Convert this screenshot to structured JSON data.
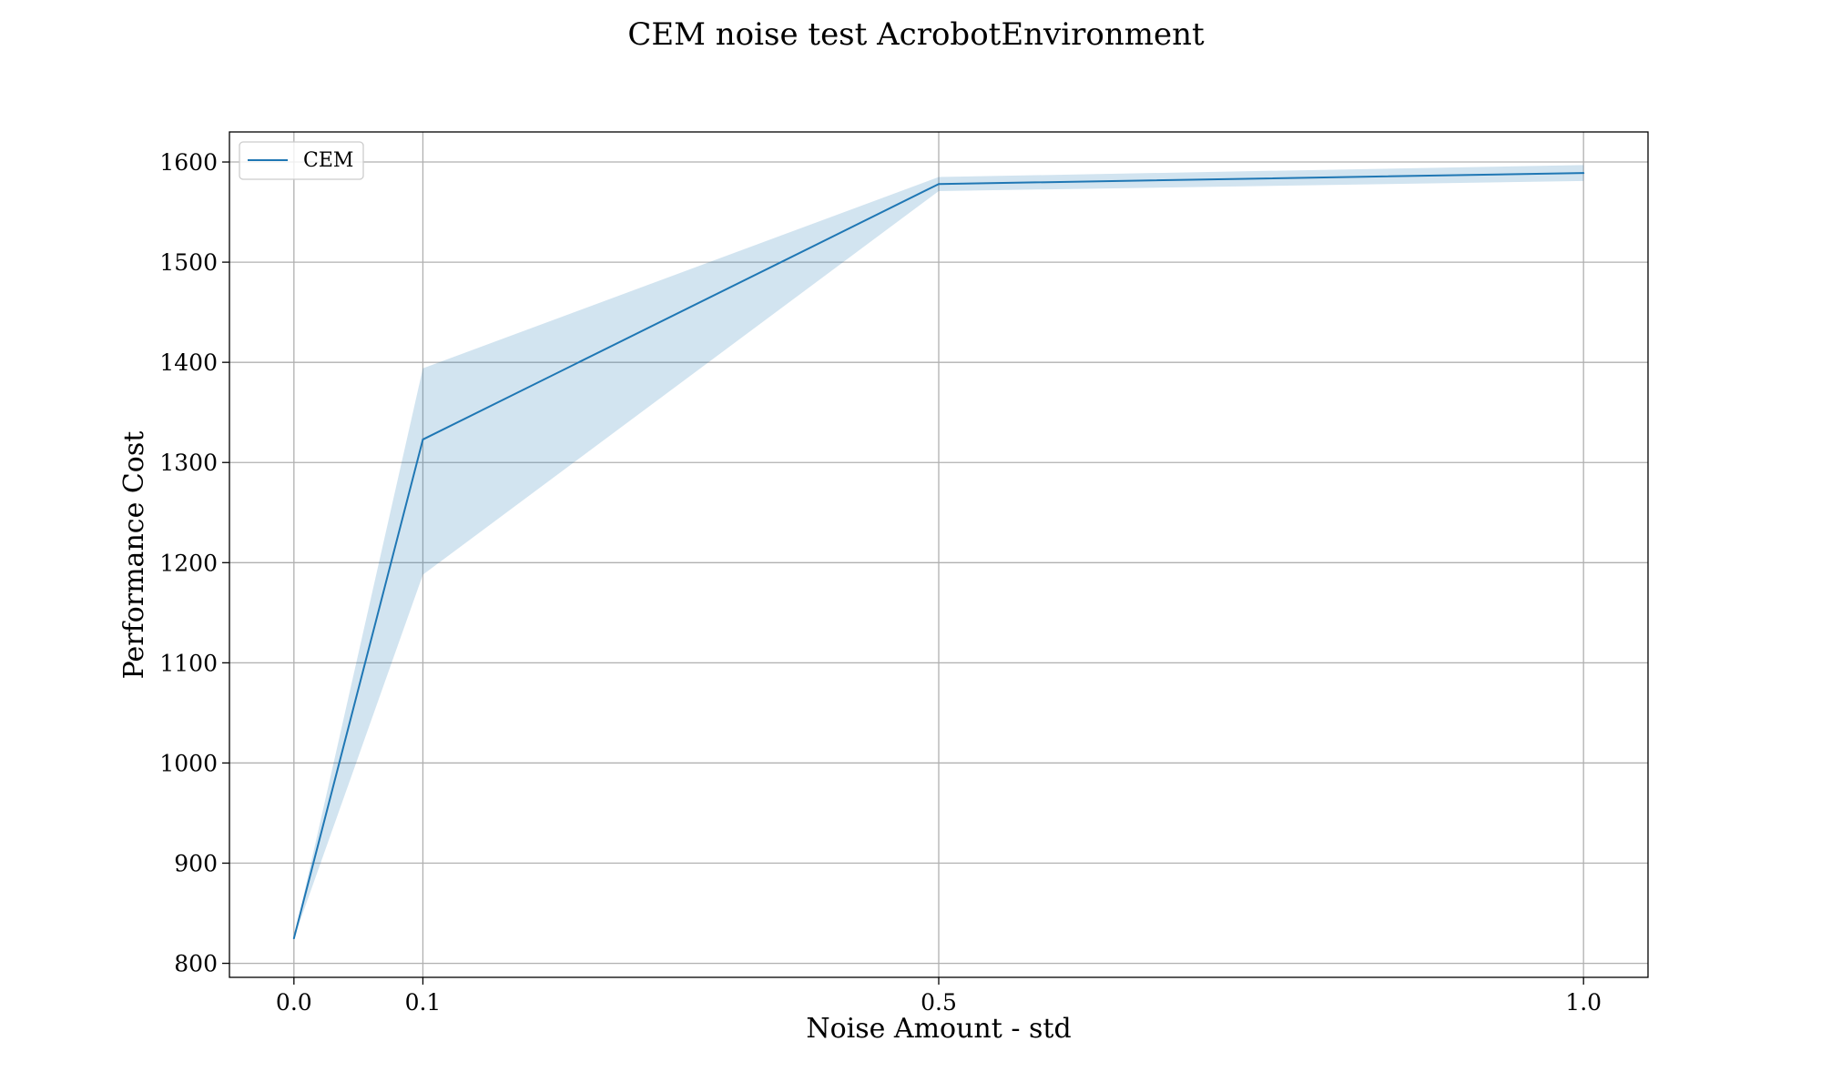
{
  "chart_data": {
    "type": "line",
    "title": "CEM noise test AcrobotEnvironment",
    "xlabel": "Noise Amount - std",
    "ylabel": "Performance Cost",
    "x": [
      0.0,
      0.1,
      0.5,
      1.0
    ],
    "x_tick_labels": [
      "0.0",
      "0.1",
      "0.5",
      "1.0"
    ],
    "xlim": [
      -0.05,
      1.05
    ],
    "ylim": [
      786,
      1630
    ],
    "y_ticks": [
      800,
      900,
      1000,
      1100,
      1200,
      1300,
      1400,
      1500,
      1600
    ],
    "grid": true,
    "legend_position": "upper left",
    "series": [
      {
        "name": "CEM",
        "color": "#1f77b4",
        "values": [
          825,
          1323,
          1578,
          1589
        ],
        "band_lower": [
          825,
          1188,
          1571,
          1581
        ],
        "band_upper": [
          825,
          1394,
          1585,
          1597
        ],
        "band_color": "#1f77b4",
        "band_opacity": 0.2
      }
    ]
  }
}
